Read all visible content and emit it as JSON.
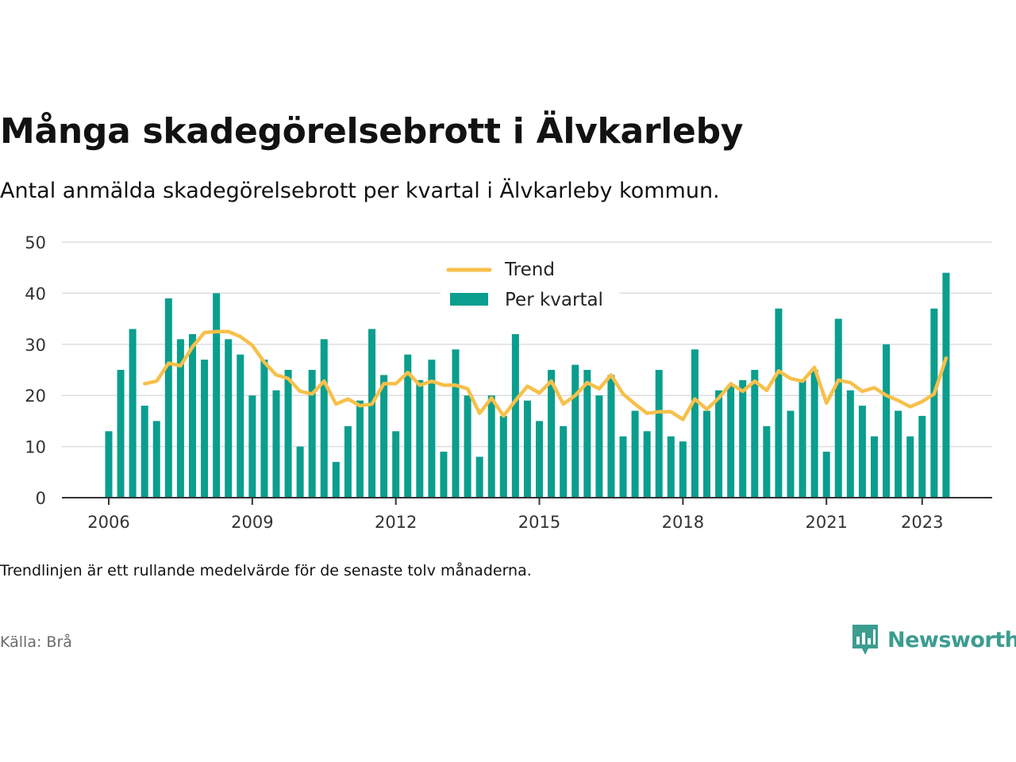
{
  "header": {
    "title": "Många skadegörelsebrott i Älvkarleby",
    "subtitle": "Antal anmälda skadegörelsebrott per kvartal i Älvkarleby kommun."
  },
  "footer": {
    "note": "Trendlinjen är ett rullande medelvärde för de senaste tolv månaderna.",
    "source": "Källa: Brå",
    "brand": "Newsworthy"
  },
  "colors": {
    "bars": "#0a9e8e",
    "trend": "#f7c04a",
    "grid": "#dedede",
    "axis": "#333333",
    "brand": "#3c9d90"
  },
  "chart_data": {
    "type": "bar",
    "x_start": "2006 Q1",
    "frequency": "quarterly",
    "ylim": [
      0,
      50
    ],
    "yticks": [
      0,
      10,
      20,
      30,
      40,
      50
    ],
    "xticks": [
      "2006",
      "2009",
      "2012",
      "2015",
      "2018",
      "2021",
      "2023"
    ],
    "legend": [
      "Trend",
      "Per kvartal"
    ],
    "legend_position": "top-center",
    "grid": true,
    "series": [
      {
        "name": "Per kvartal",
        "type": "bar",
        "values": [
          13,
          25,
          33,
          18,
          15,
          39,
          31,
          32,
          27,
          40,
          31,
          28,
          20,
          27,
          21,
          25,
          10,
          25,
          31,
          7,
          14,
          19,
          33,
          24,
          13,
          28,
          23,
          27,
          9,
          29,
          20,
          8,
          20,
          16,
          32,
          19,
          15,
          25,
          14,
          26,
          25,
          20,
          24,
          12,
          17,
          13,
          25,
          12,
          11,
          29,
          17,
          21,
          22,
          23,
          25,
          14,
          37,
          17,
          23,
          25,
          9,
          35,
          21,
          18,
          12,
          30,
          17,
          12,
          16,
          37,
          44
        ]
      },
      {
        "name": "Trend",
        "type": "line",
        "values": [
          null,
          null,
          null,
          22.3,
          22.8,
          26.3,
          25.8,
          29.5,
          32.3,
          32.5,
          32.5,
          31.5,
          29.8,
          26.5,
          24.0,
          23.3,
          20.8,
          20.3,
          22.8,
          18.3,
          19.3,
          18.0,
          18.3,
          22.3,
          22.3,
          24.5,
          22.0,
          22.8,
          22.0,
          22.0,
          21.3,
          16.5,
          19.5,
          16.0,
          19.0,
          21.8,
          20.5,
          22.8,
          18.3,
          20.0,
          22.5,
          21.3,
          24.0,
          20.3,
          18.3,
          16.5,
          16.8,
          16.8,
          15.3,
          19.3,
          17.3,
          19.5,
          22.3,
          20.8,
          22.8,
          21.0,
          24.8,
          23.3,
          22.8,
          25.5,
          18.5,
          23.0,
          22.5,
          20.8,
          21.5,
          20.0,
          19.0,
          17.8,
          18.8,
          20.3,
          27.3
        ]
      }
    ]
  }
}
